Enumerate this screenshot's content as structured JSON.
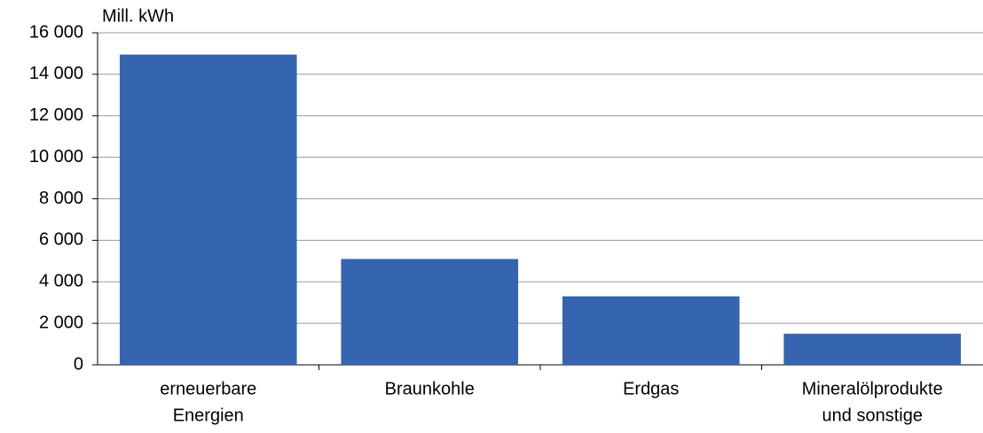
{
  "chart_data": {
    "type": "bar",
    "y_label": "Mill. kWh",
    "categories": [
      [
        "erneuerbare",
        "Energien"
      ],
      [
        "Braunkohle"
      ],
      [
        "Erdgas"
      ],
      [
        "Mineralölprodukte",
        "und sonstige"
      ]
    ],
    "values": [
      14950,
      5100,
      3300,
      1500
    ],
    "color": "#3565b0",
    "ylim": [
      0,
      16000
    ],
    "yticks": [
      0,
      {
        "value": 2000,
        "label": "2 000"
      },
      {
        "value": 4000,
        "label": "4 000"
      },
      {
        "value": 6000,
        "label": "6 000"
      },
      {
        "value": 8000,
        "label": "8 000"
      },
      {
        "value": 10000,
        "label": "10 000"
      },
      {
        "value": 12000,
        "label": "12 000"
      },
      {
        "value": 14000,
        "label": "14 000"
      },
      {
        "value": 16000,
        "label": "16 000"
      }
    ],
    "grid": true
  }
}
